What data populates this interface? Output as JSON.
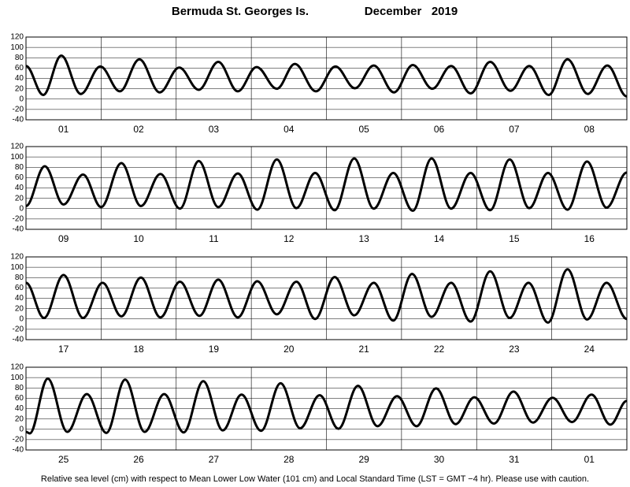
{
  "title": "Bermuda St. Georges Is.",
  "period": "December   2019",
  "note": "Relative sea level (cm) with respect to Mean Lower Low Water (101 cm) and Local Standard Time (LST = GMT −4 hr). Please use with caution.",
  "chart_data": [
    {
      "type": "line",
      "categories": [
        "01",
        "02",
        "03",
        "04",
        "05",
        "06",
        "07",
        "08"
      ],
      "color": "#000000",
      "xlim": [
        0,
        8
      ],
      "ylim": [
        -40,
        120
      ],
      "yticks": [
        -40,
        -20,
        0,
        20,
        40,
        60,
        80,
        100,
        120
      ],
      "grid": true,
      "x": [
        0,
        0.23,
        0.47,
        0.73,
        0.99,
        1.25,
        1.51,
        1.78,
        2.04,
        2.3,
        2.56,
        2.82,
        3.07,
        3.34,
        3.58,
        3.86,
        4.12,
        4.38,
        4.63,
        4.9,
        5.15,
        5.41,
        5.66,
        5.92,
        6.18,
        6.45,
        6.7,
        6.96,
        7.21,
        7.48,
        7.74,
        8
      ],
      "values": [
        64,
        8,
        84,
        10,
        63,
        15,
        77,
        13,
        61,
        18,
        72,
        15,
        62,
        20,
        68,
        15,
        63,
        21,
        65,
        13,
        66,
        20,
        64,
        11,
        72,
        16,
        64,
        8,
        77,
        10,
        65,
        5
      ]
    },
    {
      "type": "line",
      "categories": [
        "09",
        "10",
        "11",
        "12",
        "13",
        "14",
        "15",
        "16"
      ],
      "color": "#000000",
      "xlim": [
        0,
        8
      ],
      "ylim": [
        -40,
        120
      ],
      "yticks": [
        -40,
        -20,
        0,
        20,
        40,
        60,
        80,
        100,
        120
      ],
      "grid": true,
      "x": [
        0,
        0.25,
        0.5,
        0.76,
        1,
        1.27,
        1.53,
        1.79,
        2.05,
        2.3,
        2.56,
        2.82,
        3.08,
        3.34,
        3.6,
        3.85,
        4.11,
        4.37,
        4.63,
        4.89,
        5.15,
        5.4,
        5.66,
        5.92,
        6.18,
        6.44,
        6.7,
        6.95,
        7.21,
        7.47,
        7.73,
        8
      ],
      "values": [
        5,
        82,
        8,
        66,
        3,
        88,
        5,
        67,
        0,
        92,
        3,
        68,
        -2,
        95,
        1,
        69,
        -3,
        97,
        0,
        69,
        -4,
        97,
        0,
        69,
        -3,
        95,
        1,
        69,
        -2,
        91,
        2,
        70
      ]
    },
    {
      "type": "line",
      "categories": [
        "17",
        "18",
        "19",
        "20",
        "21",
        "22",
        "23",
        "24"
      ],
      "color": "#000000",
      "xlim": [
        0,
        8
      ],
      "ylim": [
        -40,
        120
      ],
      "yticks": [
        -40,
        -20,
        0,
        20,
        40,
        60,
        80,
        100,
        120
      ],
      "grid": true,
      "x": [
        0,
        0.24,
        0.5,
        0.76,
        1.02,
        1.27,
        1.53,
        1.79,
        2.05,
        2.31,
        2.56,
        2.82,
        3.08,
        3.34,
        3.6,
        3.85,
        4.11,
        4.37,
        4.63,
        4.89,
        5.14,
        5.4,
        5.66,
        5.92,
        6.18,
        6.44,
        6.69,
        6.95,
        7.21,
        7.47,
        7.73,
        8
      ],
      "values": [
        70,
        2,
        85,
        2,
        70,
        5,
        80,
        3,
        72,
        6,
        76,
        3,
        73,
        9,
        72,
        0,
        81,
        7,
        70,
        -3,
        87,
        4,
        70,
        -5,
        92,
        2,
        70,
        -7,
        96,
        -1,
        70,
        0
      ]
    },
    {
      "type": "line",
      "categories": [
        "25",
        "26",
        "27",
        "28",
        "29",
        "30",
        "31",
        "01"
      ],
      "color": "#000000",
      "xlim": [
        0,
        8
      ],
      "ylim": [
        -40,
        120
      ],
      "yticks": [
        -40,
        -20,
        0,
        20,
        40,
        60,
        80,
        100,
        120
      ],
      "grid": true,
      "x": [
        0,
        0.05,
        0.29,
        0.55,
        0.81,
        1.07,
        1.32,
        1.58,
        1.84,
        2.1,
        2.36,
        2.62,
        2.87,
        3.13,
        3.39,
        3.65,
        3.91,
        4.16,
        4.42,
        4.68,
        4.94,
        5.2,
        5.46,
        5.72,
        5.97,
        6.23,
        6.49,
        6.75,
        7.01,
        7.27,
        7.53,
        7.78,
        8
      ],
      "values": [
        -5,
        -8,
        98,
        -5,
        68,
        -7,
        96,
        -5,
        68,
        -6,
        93,
        -2,
        67,
        -3,
        89,
        2,
        66,
        1,
        84,
        6,
        64,
        6,
        79,
        10,
        62,
        11,
        73,
        13,
        61,
        14,
        67,
        9,
        55
      ]
    }
  ]
}
